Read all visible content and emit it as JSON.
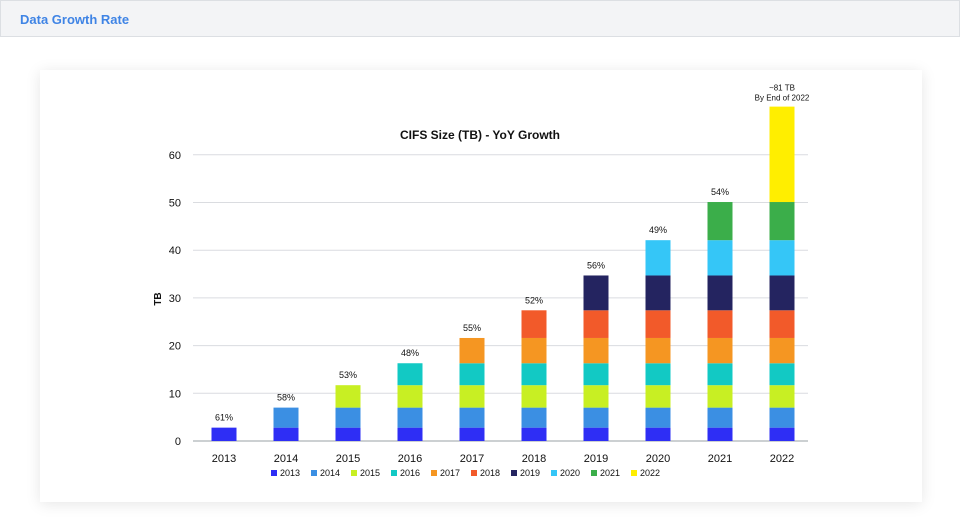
{
  "header": {
    "title": "Data Growth Rate"
  },
  "chart_data": {
    "type": "bar",
    "stacked": true,
    "title": "CIFS Size (TB) - YoY Growth",
    "xlabel": "",
    "ylabel": "TB",
    "ylim": [
      0,
      70
    ],
    "yticks": [
      0,
      10,
      20,
      30,
      40,
      50,
      60
    ],
    "grid": true,
    "legend_position": "bottom",
    "categories": [
      "2013",
      "2014",
      "2015",
      "2016",
      "2017",
      "2018",
      "2019",
      "2020",
      "2021",
      "2022"
    ],
    "growth_labels": [
      "61%",
      "58%",
      "53%",
      "48%",
      "55%",
      "52%",
      "56%",
      "49%",
      "54%",
      ""
    ],
    "annotation": {
      "category": "2022",
      "lines": [
        "~81 TB",
        "By End of 2022"
      ]
    },
    "series": [
      {
        "name": "2013",
        "color": "#2e2ef5",
        "start_index": 0,
        "value": 2.8
      },
      {
        "name": "2014",
        "color": "#3b8fe3",
        "start_index": 1,
        "value": 4.2
      },
      {
        "name": "2015",
        "color": "#c8ef23",
        "start_index": 2,
        "value": 4.7
      },
      {
        "name": "2016",
        "color": "#12c9c4",
        "start_index": 3,
        "value": 4.6
      },
      {
        "name": "2017",
        "color": "#f59622",
        "start_index": 4,
        "value": 5.3
      },
      {
        "name": "2018",
        "color": "#f25a2a",
        "start_index": 5,
        "value": 5.8
      },
      {
        "name": "2019",
        "color": "#242460",
        "start_index": 6,
        "value": 7.3
      },
      {
        "name": "2020",
        "color": "#35c6f7",
        "start_index": 7,
        "value": 7.4
      },
      {
        "name": "2021",
        "color": "#3bae4a",
        "start_index": 8,
        "value": 8.0
      },
      {
        "name": "2022",
        "color": "#ffee00",
        "start_index": 9,
        "value": 20.0
      }
    ]
  }
}
